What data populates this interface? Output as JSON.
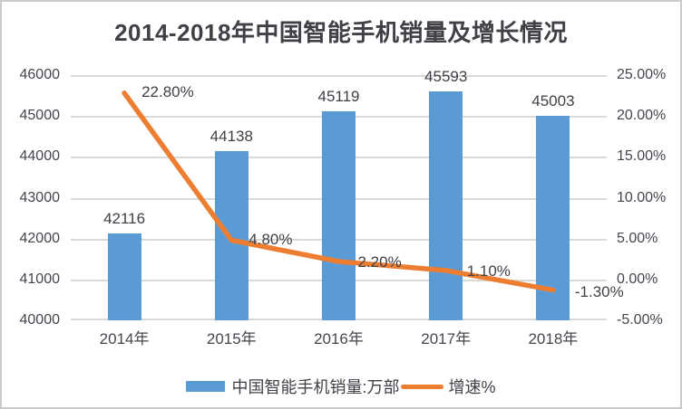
{
  "title": "2014-2018年中国智能手机销量及增长情况",
  "colors": {
    "bar": "#5b9bd5",
    "line": "#ed7d31",
    "gridline": "#d9d9d9",
    "text": "#3f4147",
    "frame_border": "#cbcbcb"
  },
  "chart_data": {
    "type": "bar",
    "subtype": "combo-bar-line",
    "title": "2014-2018年中国智能手机销量及增长情况",
    "categories": [
      "2014年",
      "2015年",
      "2016年",
      "2017年",
      "2018年"
    ],
    "series": [
      {
        "name": "中国智能手机销量:万部",
        "type": "bar",
        "axis": "left",
        "values": [
          42116,
          44138,
          45119,
          45593,
          45003
        ],
        "data_labels": [
          "42116",
          "44138",
          "45119",
          "45593",
          "45003"
        ]
      },
      {
        "name": "增速%",
        "type": "line",
        "axis": "right",
        "values": [
          22.8,
          4.8,
          2.2,
          1.1,
          -1.3
        ],
        "data_labels": [
          "22.80%",
          "4.80%",
          "2.20%",
          "1.10%",
          "-1.30%"
        ]
      }
    ],
    "left_axis": {
      "min": 40000,
      "max": 46000,
      "tick_labels": [
        "46000",
        "45000",
        "44000",
        "43000",
        "42000",
        "41000",
        "40000"
      ]
    },
    "right_axis": {
      "min": -5,
      "max": 25,
      "tick_labels": [
        "25.00%",
        "20.00%",
        "15.00%",
        "10.00%",
        "5.00%",
        "0.00%",
        "-5.00%"
      ]
    },
    "grid": true,
    "legend_position": "bottom"
  },
  "legend": {
    "bar_label": "中国智能手机销量:万部",
    "line_label": "增速%"
  }
}
